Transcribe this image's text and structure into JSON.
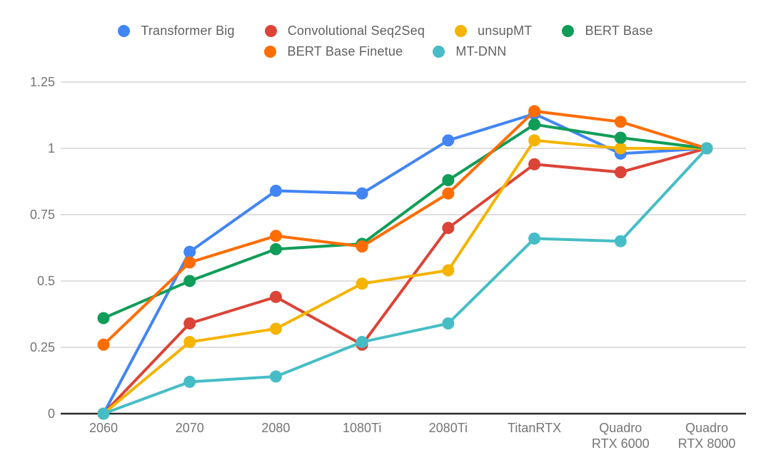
{
  "chart_data": {
    "type": "line",
    "title": "",
    "xlabel": "",
    "ylabel": "",
    "categories": [
      "2060",
      "2070",
      "2080",
      "1080Ti",
      "2080Ti",
      "TitanRTX",
      "Quadro\nRTX 6000",
      "Quadro\nRTX 8000"
    ],
    "series": [
      {
        "name": "Transformer Big",
        "color": "#4285F4",
        "values": [
          0,
          0.61,
          0.84,
          0.83,
          1.03,
          1.13,
          0.98,
          1
        ]
      },
      {
        "name": "Convolutional Seq2Seq",
        "color": "#DB4437",
        "values": [
          0,
          0.34,
          0.44,
          0.26,
          0.7,
          0.94,
          0.91,
          1
        ]
      },
      {
        "name": "unsupMT",
        "color": "#F4B400",
        "values": [
          0,
          0.27,
          0.32,
          0.49,
          0.54,
          1.03,
          1.0,
          1
        ]
      },
      {
        "name": "BERT Base",
        "color": "#0F9D58",
        "values": [
          0.36,
          0.5,
          0.62,
          0.64,
          0.88,
          1.09,
          1.04,
          1
        ]
      },
      {
        "name": "BERT Base Finetue",
        "color": "#FF6D01",
        "values": [
          0.26,
          0.57,
          0.67,
          0.63,
          0.83,
          1.14,
          1.1,
          1
        ]
      },
      {
        "name": "MT-DNN",
        "color": "#46BDC6",
        "values": [
          0,
          0.12,
          0.14,
          0.27,
          0.34,
          0.66,
          0.65,
          1
        ]
      }
    ],
    "ylim": [
      0,
      1.25
    ],
    "yticks": [
      0,
      0.25,
      0.5,
      0.75,
      1,
      1.25
    ],
    "ytick_labels": [
      "0",
      "0.25",
      "0.5",
      "0.75",
      "1",
      "1.25"
    ],
    "grid": true,
    "legend_position": "top",
    "legend_rows": [
      [
        0,
        1,
        2,
        3
      ],
      [
        4,
        5
      ]
    ]
  },
  "colors": {
    "background": "#ffffff",
    "gridline": "#cccccc",
    "baseline": "#2b2b2b",
    "axis_text": "#757575",
    "legend_text": "#616161"
  }
}
